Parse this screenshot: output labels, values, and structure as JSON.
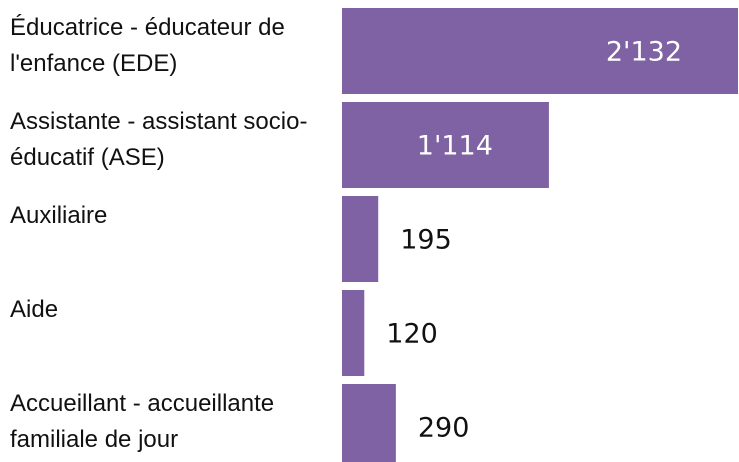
{
  "chart_data": {
    "type": "bar",
    "orientation": "horizontal",
    "categories": [
      "Éducatrice - éducateur de l'enfance (EDE)",
      "Assistante - assistant socio-éducatif (ASE)",
      "Auxiliaire",
      "Aide",
      "Accueillant - accueillante familiale de jour"
    ],
    "values": [
      2132,
      1114,
      195,
      120,
      290
    ],
    "value_labels": [
      "2'132",
      "1'114",
      "195",
      "120",
      "290"
    ],
    "color": "#7f62a3"
  }
}
